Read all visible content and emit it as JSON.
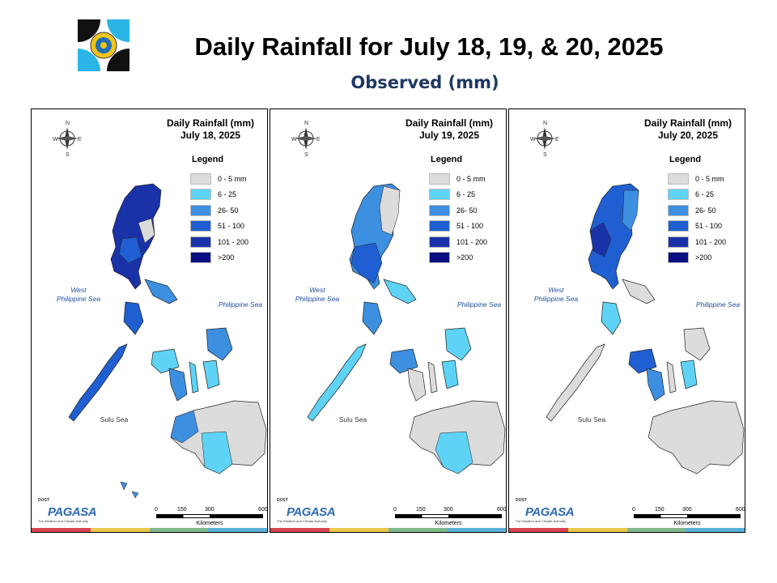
{
  "header": {
    "title": "Daily Rainfall for July 18, 19, & 20, 2025",
    "subtitle": "Observed (mm)"
  },
  "legend": {
    "title": "Legend",
    "items": [
      {
        "label": "0 - 5 mm",
        "color": "#dcdcdc"
      },
      {
        "label": "6 - 25",
        "color": "#5ed3f5"
      },
      {
        "label": "26- 50",
        "color": "#3d8fe0"
      },
      {
        "label": "51 - 100",
        "color": "#1f5fd1"
      },
      {
        "label": "101 - 200",
        "color": "#1a32a8"
      },
      {
        "label": ">200",
        "color": "#0b0f82"
      }
    ]
  },
  "panels": [
    {
      "heading": "Daily Rainfall (mm)",
      "date": "July 18, 2025"
    },
    {
      "heading": "Daily Rainfall (mm)",
      "date": "July 19, 2025"
    },
    {
      "heading": "Daily Rainfall (mm)",
      "date": "July 20, 2025"
    }
  ],
  "map_labels": {
    "west_sea": "West\nPhilippine Sea",
    "east_sea": "Philippine Sea",
    "south_sea": "Sulu Sea",
    "compass": {
      "n": "N",
      "s": "S",
      "e": "E",
      "w": "W"
    }
  },
  "scale_bar": {
    "ticks": [
      "0",
      "150",
      "300",
      "600"
    ],
    "unit": "Kilometers"
  },
  "brand": {
    "name": "PAGASA",
    "small": "DOST",
    "tagline": "The Weather and Climate Authority"
  },
  "strip_colors": [
    "#d64550",
    "#e9c84a",
    "#7fb98a",
    "#5ab0d6"
  ]
}
